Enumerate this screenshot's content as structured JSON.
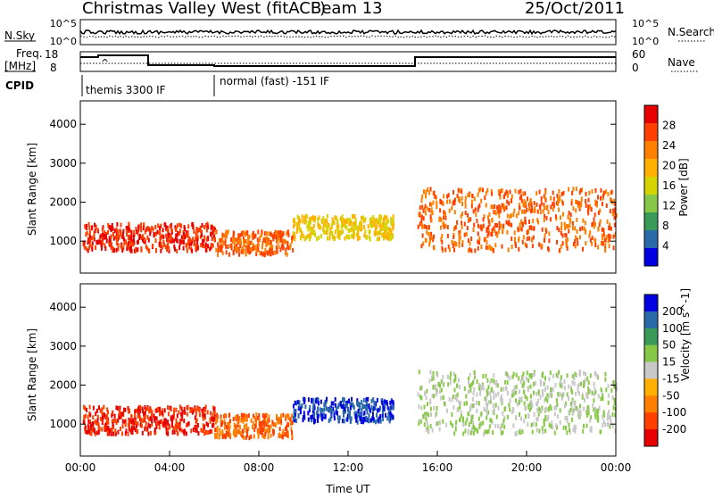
{
  "header": {
    "station": "Christmas Valley West (fitACF)",
    "beam": "Beam 13",
    "date": "25/Oct/2011"
  },
  "nsky_panel": {
    "left_label": "N.Sky",
    "right_label": "N.Search",
    "left_ticks": [
      "10^5",
      "10^0"
    ],
    "right_ticks": [
      "10^5",
      "10^0"
    ]
  },
  "freq_panel": {
    "left_label_1": "Freq.",
    "left_label_2": "[MHz]",
    "left_ticks": [
      "18",
      "8"
    ],
    "right_label": "Nave",
    "right_ticks": [
      "60",
      "0"
    ]
  },
  "cpid_panel": {
    "label": "CPID",
    "segments": [
      {
        "text": "themis 3300 IF"
      },
      {
        "text": "normal (fast) -151 IF"
      }
    ]
  },
  "x_axis": {
    "label": "Time UT",
    "ticks": [
      "00:00",
      "04:00",
      "08:00",
      "12:00",
      "16:00",
      "20:00",
      "00:00"
    ]
  },
  "power_panel": {
    "ylabel": "Slant Range [km]",
    "yticks": [
      "4000",
      "3000",
      "2000",
      "1000"
    ],
    "colorbar_label": "Power [dB]",
    "colorbar_ticks": [
      "28",
      "24",
      "20",
      "16",
      "12",
      "8",
      "4"
    ],
    "colors": [
      "#e60000",
      "#ff4000",
      "#ff8000",
      "#ffb000",
      "#d4d400",
      "#88c848",
      "#3a9a5a",
      "#2a6aa8",
      "#0000e0"
    ]
  },
  "velocity_panel": {
    "ylabel": "Slant Range [km]",
    "yticks": [
      "4000",
      "3000",
      "2000",
      "1000"
    ],
    "colorbar_label": "Velocity [m s^-1]",
    "colorbar_ticks": [
      "200",
      "100",
      "50",
      "15",
      "-15",
      "-50",
      "-100",
      "-200"
    ],
    "colors": [
      "#0000e0",
      "#2a6aa8",
      "#3a9a5a",
      "#88c848",
      "#c8c8c8",
      "#ffb000",
      "#ff8000",
      "#ff4000",
      "#e60000"
    ]
  },
  "chart_data": {
    "type": "heatmap",
    "xlabel": "Time UT",
    "ylabel": "Slant Range [km]",
    "xlim": [
      "00:00",
      "24:00"
    ],
    "ylim": [
      180,
      4600
    ],
    "y_ticks": [
      1000,
      2000,
      3000,
      4000
    ],
    "scatter_regions": [
      {
        "t_start": 0.1,
        "t_end": 6.0,
        "r_low": 800,
        "r_high": 1500,
        "power_db": 28,
        "velocity": -200
      },
      {
        "t_start": 6.0,
        "t_end": 9.5,
        "r_low": 700,
        "r_high": 1300,
        "power_db": 26,
        "velocity": -150
      },
      {
        "t_start": 9.5,
        "t_end": 14.0,
        "r_low": 1100,
        "r_high": 1700,
        "power_db": 16,
        "velocity": 150
      },
      {
        "t_start": 15.1,
        "t_end": 24.0,
        "r_low": 800,
        "r_high": 2400,
        "power_db": 24,
        "velocity": 0
      }
    ]
  }
}
